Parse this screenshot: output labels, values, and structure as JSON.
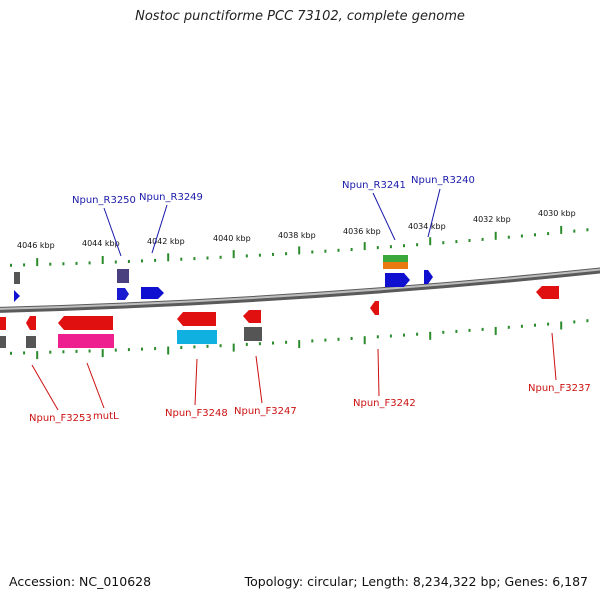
{
  "title": "Nostoc punctiforme PCC 73102, complete genome",
  "footer": {
    "accession": "Accession: NC_010628",
    "summary": "Topology: circular; Length: 8,234,322 bp; Genes: 6,187"
  },
  "colors": {
    "reverse_label": "#1a1aaa",
    "forward_label": "#cc1111",
    "tick": "#2b8a2b",
    "backbone": "#888888"
  },
  "kbp_labels": [
    "4046 kbp",
    "4044 kbp",
    "4042 kbp",
    "4040 kbp",
    "4038 kbp",
    "4036 kbp",
    "4034 kbp",
    "4032 kbp",
    "4030 kbp"
  ],
  "gene_labels": {
    "reverse": [
      "Npun_R3250",
      "Npun_R3249",
      "Npun_R3241",
      "Npun_R3240"
    ],
    "forward": [
      "Npun_F3253",
      "mutL",
      "Npun_F3248",
      "Npun_F3247",
      "Npun_F3242",
      "Npun_F3237"
    ]
  }
}
